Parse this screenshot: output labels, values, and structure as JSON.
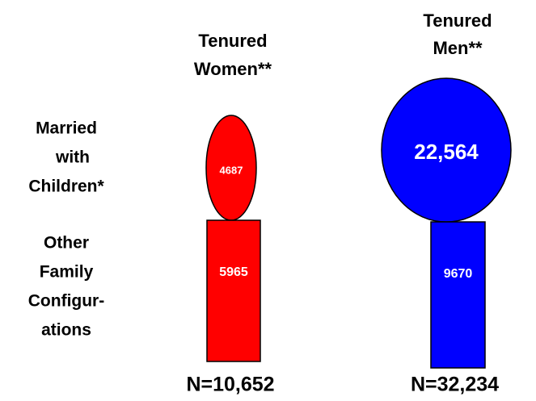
{
  "chart_data": {
    "type": "pictogram",
    "row_labels": [
      [
        "Married",
        "with",
        "Children*"
      ],
      [
        "Other",
        "Family",
        "Configur-",
        "ations"
      ]
    ],
    "series": [
      {
        "name": [
          "Tenured",
          "Women**"
        ],
        "color": "#ff0000",
        "values": [
          4687,
          5965
        ],
        "total": 10652,
        "total_label": "N=10,652"
      },
      {
        "name": [
          "Tenured",
          "Men**"
        ],
        "color": "#0000ff",
        "values": [
          22564,
          9670
        ],
        "value_labels": [
          "22,564",
          "9670"
        ],
        "total": 32234,
        "total_label": "N=32,234"
      }
    ]
  }
}
